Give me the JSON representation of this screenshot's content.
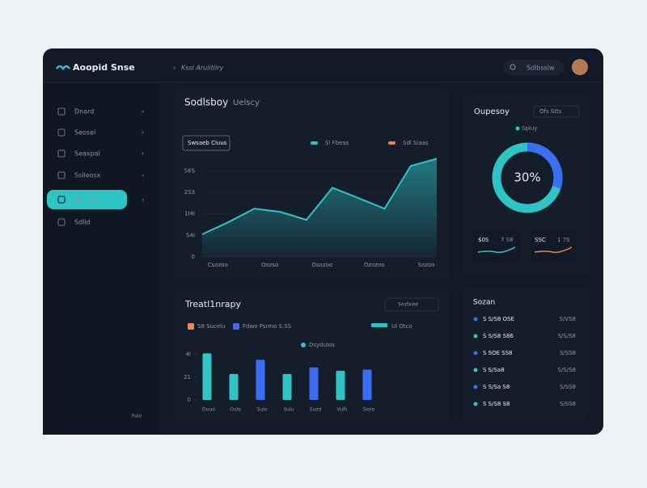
{
  "app": {
    "brand": "Aoopid Snse",
    "breadcrumb": "Kssl Arulitiiry",
    "search": "Sdlbsslw"
  },
  "sidebar": {
    "items": [
      "Dnard",
      "Seosel",
      "Seaxpal",
      "Sslleosx",
      "Ulssoos",
      "Sdlld"
    ],
    "active": 4,
    "footer": "Fulo"
  },
  "area_chart": {
    "type": "area",
    "title": "Sodlsboy",
    "subtitle": "Uelscy",
    "button": "Swsaeb Ciuus",
    "legend": [
      {
        "name": "Sl Fbeas",
        "color": "#2ec4c4"
      },
      {
        "name": "Sdl Siaas",
        "color": "#e8875a"
      }
    ],
    "x": [
      0,
      1,
      2,
      3,
      4,
      5,
      6,
      7,
      8,
      9
    ],
    "values": [
      105,
      161,
      224,
      209,
      172,
      321,
      273,
      224,
      422,
      456
    ],
    "color": "#2ec4c4",
    "xlim": [
      0,
      9
    ],
    "xticks": [
      {
        "value": 0.6,
        "label": "Csozoo"
      },
      {
        "value": 2.6,
        "label": "Oozso"
      },
      {
        "value": 4.6,
        "label": "Osozoo"
      },
      {
        "value": 6.6,
        "label": "Ozozoo"
      },
      {
        "value": 8.6,
        "label": "Sozoo"
      }
    ],
    "ylim": [
      0,
      480
    ],
    "yticks": [
      0,
      {
        "value": 100,
        "label": "S4I"
      },
      {
        "value": 200,
        "label": "1I4I"
      },
      {
        "value": 300,
        "label": "2S3"
      },
      {
        "value": 400,
        "label": "S6S"
      }
    ]
  },
  "donut": {
    "type": "donut",
    "title": "Oupesoy",
    "filter": "Ofs Stts",
    "legend": "Spiuy",
    "value": 30,
    "value_label": "30%",
    "colors": [
      "#3b6ef5",
      "#2ec4c4"
    ],
    "stats": [
      {
        "label": "$0S",
        "detail": "7 S8"
      },
      {
        "label": "SSC",
        "detail": "1 7S"
      }
    ]
  },
  "bar_chart": {
    "type": "bar",
    "title": "Treatl1nrapy",
    "filter": "Sesfaiee",
    "legend": [
      {
        "name": "S8 Sucelu",
        "color": "#e8875a"
      },
      {
        "name": "Fdwo Psrmo S.SS",
        "color": "#3b6ef5"
      },
      {
        "name": "Ul Otco",
        "color": "#2ec4c4"
      }
    ],
    "caption": "Dsydulos",
    "categories": [
      "Duuo",
      "Oulo",
      "Sulo",
      "Sulu",
      "Suzd",
      "Vulh",
      "Siolo"
    ],
    "series": [
      {
        "name": "Dsydulos",
        "values": [
          43,
          24,
          37,
          24,
          30,
          27,
          28
        ],
        "colors": [
          "#2ec4c4",
          "#2ec4c4",
          "#3b6ef5",
          "#2ec4c4",
          "#3b6ef5",
          "#2ec4c4",
          "#3b6ef5"
        ]
      }
    ],
    "ylim": [
      0,
      50
    ],
    "yticks": [
      0,
      21,
      {
        "value": 42,
        "label": "4I"
      }
    ]
  },
  "list": {
    "title": "Sozan",
    "rows": [
      [
        "S S/S8 OSE",
        "S/VS8"
      ],
      [
        "S S/S8 S86",
        "S/S/S8"
      ],
      [
        "S SOE SS8",
        "S/SS8"
      ],
      [
        "S S/Sa8",
        "S/S/S8"
      ],
      [
        "S S/Sa S8",
        "S/SS8"
      ],
      [
        "S S/S8 S8",
        "S/SS8"
      ]
    ]
  }
}
